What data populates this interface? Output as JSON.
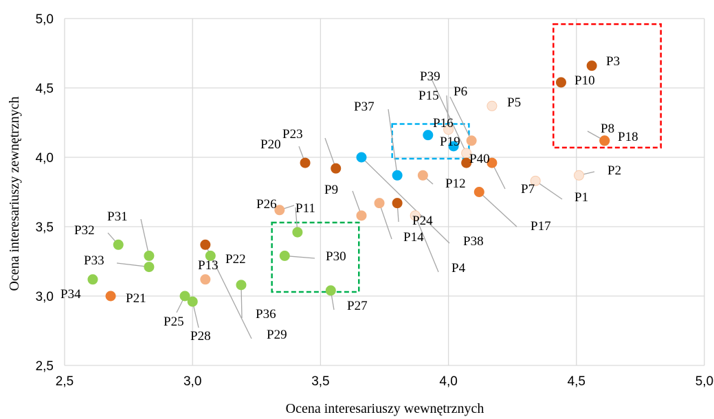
{
  "chart_data": {
    "type": "scatter",
    "xlabel": "Ocena interesariuszy wewnętrznych",
    "ylabel": "Ocena interesariuszy zewnętrznych",
    "xlim": [
      2.5,
      5.0
    ],
    "ylim": [
      2.5,
      5.0
    ],
    "x_ticks": [
      "2,5",
      "3,0",
      "3,5",
      "4,0",
      "4,5",
      "5,0"
    ],
    "y_ticks": [
      "2,5",
      "3,0",
      "3,5",
      "4,0",
      "4,5",
      "5,0"
    ],
    "grid": true,
    "colors": {
      "dark_orange": "#c55a11",
      "orange": "#ed7d31",
      "salmon": "#f4b183",
      "light_pink": "#fbe5d6",
      "blue": "#00b0f0",
      "green": "#92d050",
      "red_box": "#ff0000",
      "cyan_box": "#00b0f0",
      "green_box": "#00b050",
      "leader": "#a6a6a6",
      "gridline": "#d9d9d9"
    },
    "points": [
      {
        "name": "P1",
        "x": 4.34,
        "y": 3.83,
        "color": "light_pink"
      },
      {
        "name": "P2",
        "x": 4.51,
        "y": 3.87,
        "color": "light_pink"
      },
      {
        "name": "P3",
        "x": 4.56,
        "y": 4.66,
        "color": "dark_orange"
      },
      {
        "name": "P4",
        "x": 3.87,
        "y": 3.58,
        "color": "light_pink"
      },
      {
        "name": "P5",
        "x": 4.17,
        "y": 4.37,
        "color": "light_pink"
      },
      {
        "name": "P6",
        "x": 4.09,
        "y": 4.12,
        "color": "salmon"
      },
      {
        "name": "P7",
        "x": 4.17,
        "y": 3.96,
        "color": "orange"
      },
      {
        "name": "P8",
        "x": 4.61,
        "y": 4.12,
        "color": "orange"
      },
      {
        "name": "P9",
        "x": 3.66,
        "y": 3.58,
        "color": "salmon"
      },
      {
        "name": "P10",
        "x": 4.44,
        "y": 4.54,
        "color": "dark_orange"
      },
      {
        "name": "P11",
        "x": 3.41,
        "y": 3.46,
        "color": "green"
      },
      {
        "name": "P12",
        "x": 3.9,
        "y": 3.87,
        "color": "salmon"
      },
      {
        "name": "P13",
        "x": 3.05,
        "y": 3.12,
        "color": "salmon"
      },
      {
        "name": "P14",
        "x": 3.73,
        "y": 3.67,
        "color": "salmon"
      },
      {
        "name": "P15",
        "x": 4.0,
        "y": 4.2,
        "color": "light_pink"
      },
      {
        "name": "P16",
        "x": 3.92,
        "y": 4.16,
        "color": "blue"
      },
      {
        "name": "P17",
        "x": 4.12,
        "y": 3.75,
        "color": "orange"
      },
      {
        "name": "P18",
        "x": 4.61,
        "y": 4.12,
        "color": "orange"
      },
      {
        "name": "P19",
        "x": 4.02,
        "y": 4.08,
        "color": "blue"
      },
      {
        "name": "P20",
        "x": 3.44,
        "y": 3.96,
        "color": "dark_orange"
      },
      {
        "name": "P21",
        "x": 2.68,
        "y": 3.0,
        "color": "orange"
      },
      {
        "name": "P22",
        "x": 3.07,
        "y": 3.29,
        "color": "green"
      },
      {
        "name": "P23",
        "x": 3.56,
        "y": 3.92,
        "color": "dark_orange"
      },
      {
        "name": "P24",
        "x": 3.8,
        "y": 3.67,
        "color": "dark_orange"
      },
      {
        "name": "P25",
        "x": 2.97,
        "y": 3.0,
        "color": "green"
      },
      {
        "name": "P26",
        "x": 3.34,
        "y": 3.62,
        "color": "salmon"
      },
      {
        "name": "P27",
        "x": 3.54,
        "y": 3.04,
        "color": "green"
      },
      {
        "name": "P28",
        "x": 3.0,
        "y": 2.96,
        "color": "green"
      },
      {
        "name": "P29",
        "x": 3.05,
        "y": 3.37,
        "color": "dark_orange"
      },
      {
        "name": "P30",
        "x": 3.36,
        "y": 3.29,
        "color": "green"
      },
      {
        "name": "P31",
        "x": 2.83,
        "y": 3.29,
        "color": "green"
      },
      {
        "name": "P32",
        "x": 2.71,
        "y": 3.37,
        "color": "green"
      },
      {
        "name": "P33",
        "x": 2.83,
        "y": 3.21,
        "color": "green"
      },
      {
        "name": "P34",
        "x": 2.61,
        "y": 3.12,
        "color": "green"
      },
      {
        "name": "P36",
        "x": 3.19,
        "y": 3.08,
        "color": "green"
      },
      {
        "name": "P37",
        "x": 3.8,
        "y": 3.87,
        "color": "blue"
      },
      {
        "name": "P38",
        "x": 3.66,
        "y": 4.0,
        "color": "blue"
      },
      {
        "name": "P39",
        "x": 4.07,
        "y": 4.03,
        "color": "light_pink"
      },
      {
        "name": "P40",
        "x": 4.07,
        "y": 3.96,
        "color": "dark_orange"
      }
    ],
    "boxes": [
      {
        "color": "red_box",
        "x": [
          4.41,
          4.83
        ],
        "y": [
          4.07,
          4.96
        ]
      },
      {
        "color": "cyan_box",
        "x": [
          3.78,
          4.08
        ],
        "y": [
          3.99,
          4.24
        ]
      },
      {
        "color": "green_box",
        "x": [
          3.31,
          3.65
        ],
        "y": [
          3.03,
          3.53
        ]
      }
    ]
  }
}
